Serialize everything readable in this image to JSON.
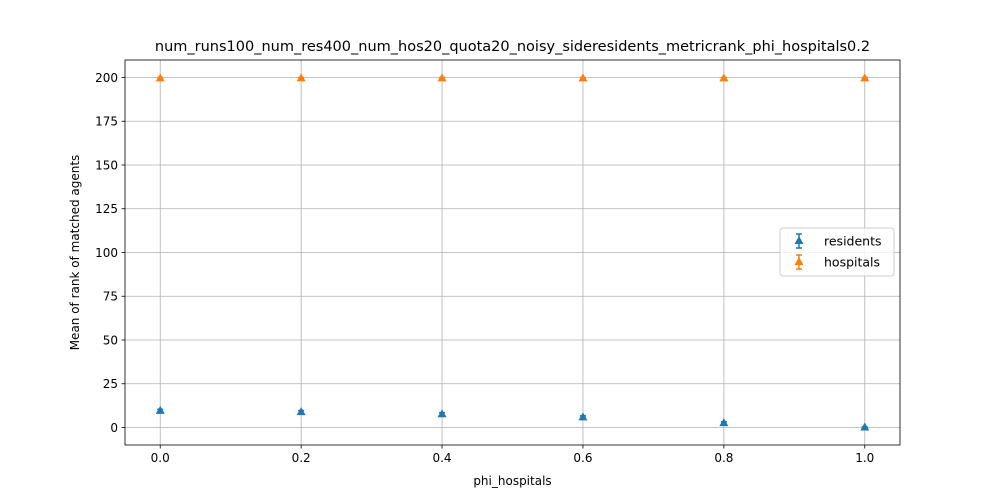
{
  "chart_data": {
    "type": "scatter",
    "title": "num_runs100_num_res400_num_hos20_quota20_noisy_sideresidents_metricrank_phi_hospitals0.2",
    "xlabel": "phi_hospitals",
    "ylabel": "Mean of rank of matched agents",
    "x": [
      0.0,
      0.2,
      0.4,
      0.6,
      0.8,
      1.0
    ],
    "xticks": [
      "0.0",
      "0.2",
      "0.4",
      "0.6",
      "0.8",
      "1.0"
    ],
    "yticks": [
      "0",
      "25",
      "50",
      "75",
      "100",
      "125",
      "150",
      "175",
      "200"
    ],
    "xlim": [
      -0.05,
      1.05
    ],
    "ylim": [
      -10,
      210
    ],
    "grid": true,
    "legend_position": "center-right",
    "series": [
      {
        "name": "residents",
        "color": "#1f77b4",
        "marker": "triangle-up",
        "values": [
          9.5,
          8.8,
          7.6,
          5.8,
          2.5,
          0.0
        ],
        "errors": [
          0.9,
          0.9,
          0.9,
          0.9,
          0.8,
          0.3
        ]
      },
      {
        "name": "hospitals",
        "color": "#ff7f0e",
        "marker": "triangle-up",
        "values": [
          199.5,
          199.5,
          199.5,
          199.5,
          199.5,
          199.5
        ],
        "errors": [
          0.5,
          0.5,
          0.5,
          0.5,
          0.5,
          0.5
        ]
      }
    ]
  }
}
